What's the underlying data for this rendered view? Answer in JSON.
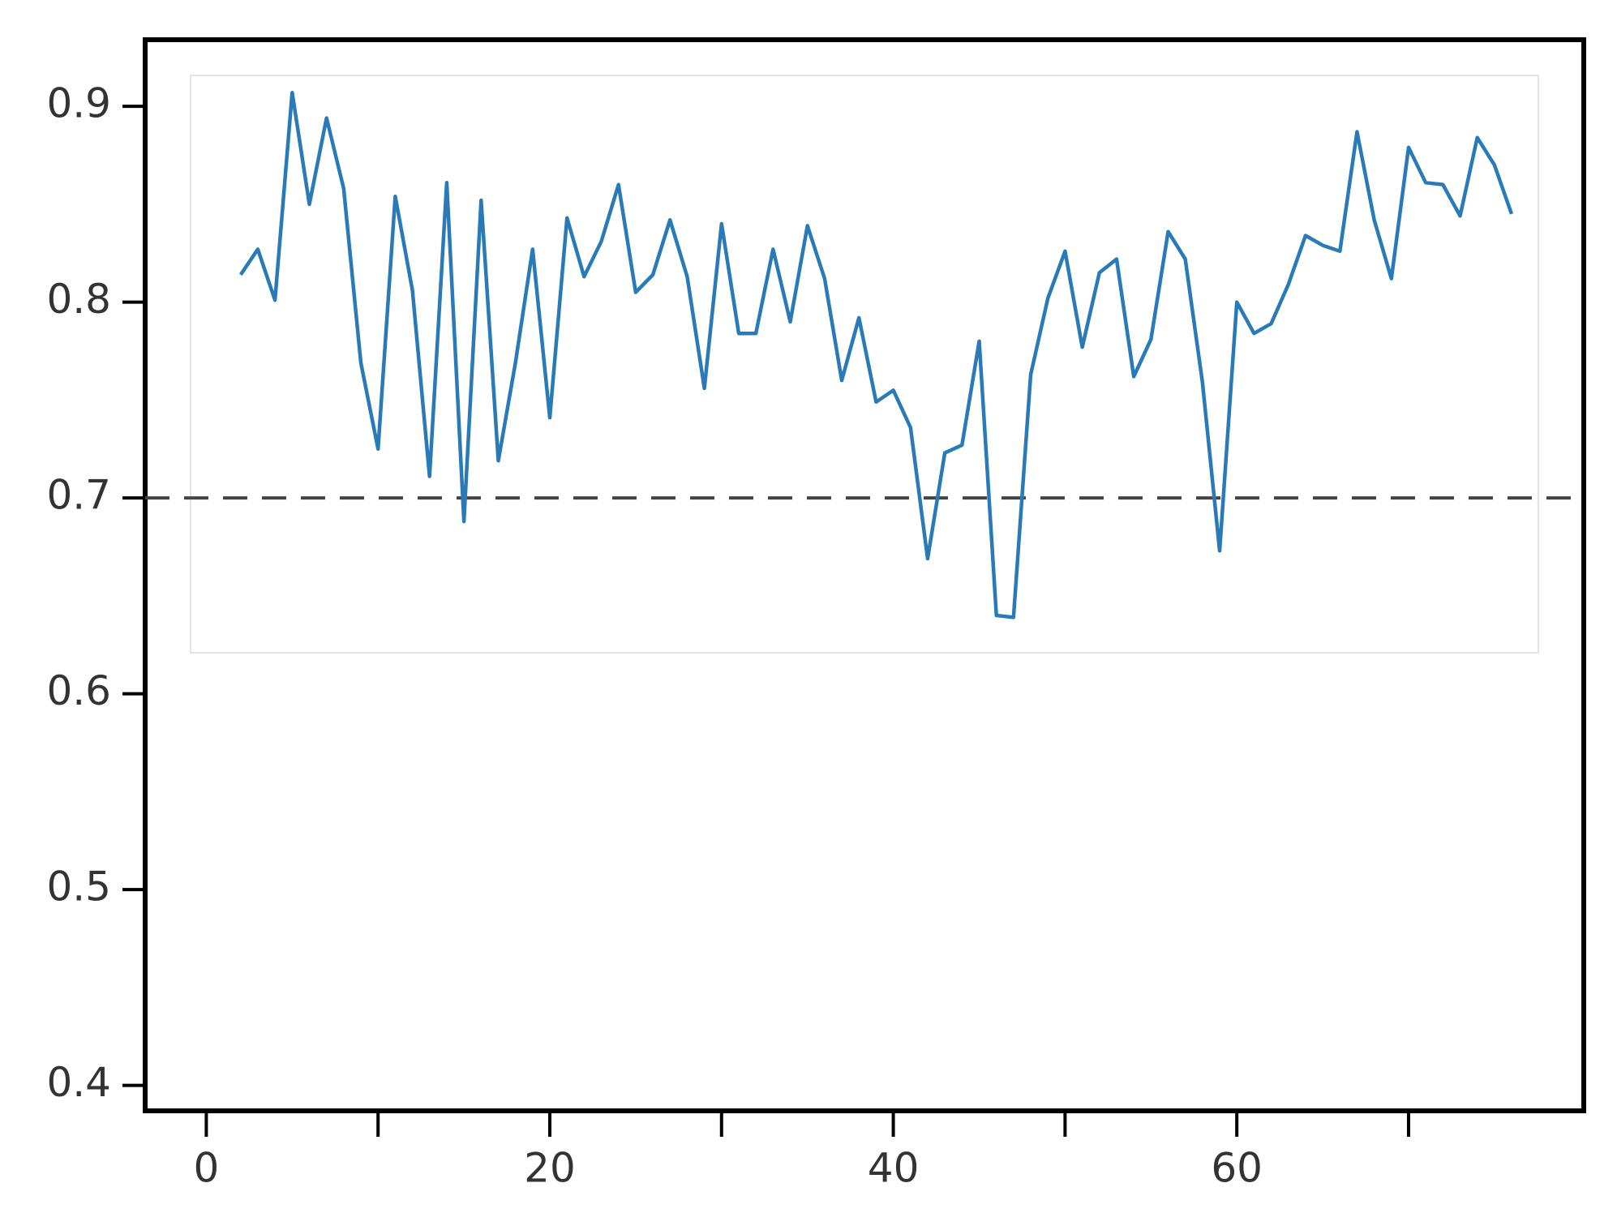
{
  "chart_data": {
    "type": "line",
    "x": [
      2,
      3,
      4,
      5,
      6,
      7,
      8,
      9,
      10,
      11,
      12,
      13,
      14,
      15,
      16,
      17,
      18,
      19,
      20,
      21,
      22,
      23,
      24,
      25,
      26,
      27,
      28,
      29,
      30,
      31,
      32,
      33,
      34,
      35,
      36,
      37,
      38,
      39,
      40,
      41,
      42,
      43,
      44,
      45,
      46,
      47,
      48,
      49,
      50,
      51,
      52,
      53,
      54,
      55,
      56,
      57,
      58,
      59,
      60,
      61,
      62,
      63,
      64,
      65,
      66,
      67,
      68,
      69,
      70,
      71,
      72,
      73,
      74,
      75,
      76
    ],
    "series": [
      {
        "color": "#2a7ab8",
        "values": [
          0.814,
          0.827,
          0.801,
          0.907,
          0.85,
          0.894,
          0.858,
          0.769,
          0.725,
          0.854,
          0.806,
          0.711,
          0.861,
          0.688,
          0.852,
          0.719,
          0.769,
          0.827,
          0.741,
          0.843,
          0.813,
          0.831,
          0.86,
          0.805,
          0.814,
          0.842,
          0.813,
          0.756,
          0.84,
          0.784,
          0.784,
          0.827,
          0.79,
          0.839,
          0.812,
          0.76,
          0.792,
          0.749,
          0.755,
          0.736,
          0.669,
          0.723,
          0.727,
          0.78,
          0.64,
          0.639,
          0.763,
          0.802,
          0.826,
          0.777,
          0.815,
          0.822,
          0.762,
          0.781,
          0.836,
          0.822,
          0.759,
          0.673,
          0.8,
          0.784,
          0.789,
          0.809,
          0.834,
          0.829,
          0.826,
          0.887,
          0.842,
          0.812,
          0.879,
          0.861,
          0.86,
          0.844,
          0.884,
          0.87,
          0.845
        ]
      }
    ],
    "xlim": [
      -3.56,
      80.2
    ],
    "xticks": [
      0,
      20,
      40,
      60
    ],
    "xminorticks": [
      10,
      30,
      50,
      70
    ],
    "ylim": [
      0.387,
      0.934
    ],
    "yticks": [
      0.4,
      0.5,
      0.6,
      0.7,
      0.8,
      0.9
    ],
    "hline": 0.7
  }
}
